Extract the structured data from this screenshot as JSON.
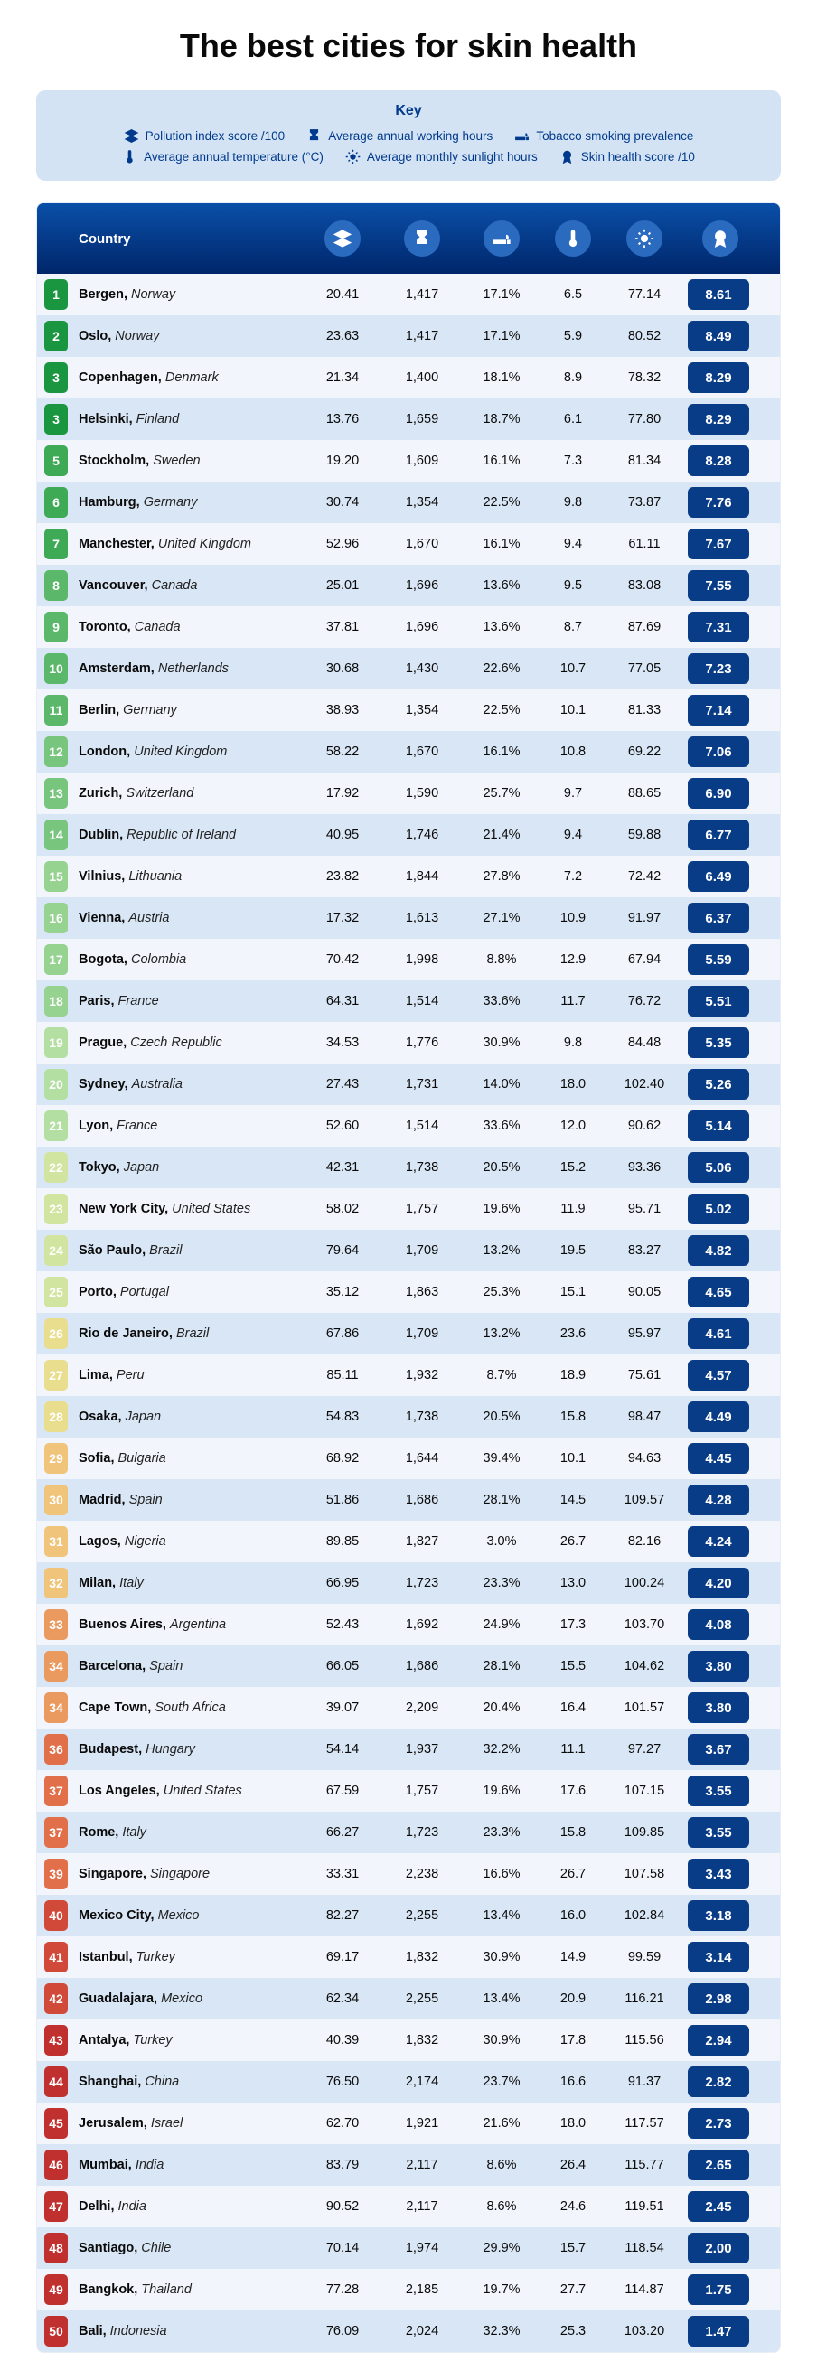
{
  "title": "The best cities for skin health",
  "key_title": "Key",
  "key_items": [
    "Pollution index score /100",
    "Average annual working hours",
    "Tobacco smoking prevalence",
    "Average annual temperature (°C)",
    "Average monthly sunlight hours",
    "Skin health score /10"
  ],
  "header_country": "Country",
  "colors": {
    "header_grad_top": "#0a4fa8",
    "header_grad_bottom": "#00266a",
    "icon_circle": "#2a6bc0",
    "key_bg": "#d4e3f4",
    "key_text": "#003a8c",
    "score_bg": "#083c86",
    "row_even": "#f2f6fc",
    "row_odd": "#d9e6f5",
    "rank_palette": [
      "#1a9641",
      "#3eaa56",
      "#5bb86a",
      "#78c57d",
      "#96d290",
      "#b4dfa3",
      "#d2e5a0",
      "#e8de8e",
      "#f0c47a",
      "#ea9a5f",
      "#e06f4a",
      "#d14939",
      "#c0302e",
      "#c0302e",
      "#c0302e"
    ]
  },
  "rows": [
    {
      "rank": 1,
      "city": "Bergen",
      "country": "Norway",
      "pollution": "20.41",
      "hours": "1,417",
      "smoke": "17.1%",
      "temp": "6.5",
      "sun": "77.14",
      "score": "8.61"
    },
    {
      "rank": 2,
      "city": "Oslo",
      "country": "Norway",
      "pollution": "23.63",
      "hours": "1,417",
      "smoke": "17.1%",
      "temp": "5.9",
      "sun": "80.52",
      "score": "8.49"
    },
    {
      "rank": 3,
      "city": "Copenhagen",
      "country": "Denmark",
      "pollution": "21.34",
      "hours": "1,400",
      "smoke": "18.1%",
      "temp": "8.9",
      "sun": "78.32",
      "score": "8.29"
    },
    {
      "rank": 3,
      "city": "Helsinki",
      "country": "Finland",
      "pollution": "13.76",
      "hours": "1,659",
      "smoke": "18.7%",
      "temp": "6.1",
      "sun": "77.80",
      "score": "8.29"
    },
    {
      "rank": 5,
      "city": "Stockholm",
      "country": "Sweden",
      "pollution": "19.20",
      "hours": "1,609",
      "smoke": "16.1%",
      "temp": "7.3",
      "sun": "81.34",
      "score": "8.28"
    },
    {
      "rank": 6,
      "city": "Hamburg",
      "country": "Germany",
      "pollution": "30.74",
      "hours": "1,354",
      "smoke": "22.5%",
      "temp": "9.8",
      "sun": "73.87",
      "score": "7.76"
    },
    {
      "rank": 7,
      "city": "Manchester",
      "country": "United Kingdom",
      "pollution": "52.96",
      "hours": "1,670",
      "smoke": "16.1%",
      "temp": "9.4",
      "sun": "61.11",
      "score": "7.67"
    },
    {
      "rank": 8,
      "city": "Vancouver",
      "country": "Canada",
      "pollution": "25.01",
      "hours": "1,696",
      "smoke": "13.6%",
      "temp": "9.5",
      "sun": "83.08",
      "score": "7.55"
    },
    {
      "rank": 9,
      "city": "Toronto",
      "country": "Canada",
      "pollution": "37.81",
      "hours": "1,696",
      "smoke": "13.6%",
      "temp": "8.7",
      "sun": "87.69",
      "score": "7.31"
    },
    {
      "rank": 10,
      "city": "Amsterdam",
      "country": "Netherlands",
      "pollution": "30.68",
      "hours": "1,430",
      "smoke": "22.6%",
      "temp": "10.7",
      "sun": "77.05",
      "score": "7.23"
    },
    {
      "rank": 11,
      "city": "Berlin",
      "country": "Germany",
      "pollution": "38.93",
      "hours": "1,354",
      "smoke": "22.5%",
      "temp": "10.1",
      "sun": "81.33",
      "score": "7.14"
    },
    {
      "rank": 12,
      "city": "London",
      "country": "United Kingdom",
      "pollution": "58.22",
      "hours": "1,670",
      "smoke": "16.1%",
      "temp": "10.8",
      "sun": "69.22",
      "score": "7.06"
    },
    {
      "rank": 13,
      "city": "Zurich",
      "country": "Switzerland",
      "pollution": "17.92",
      "hours": "1,590",
      "smoke": "25.7%",
      "temp": "9.7",
      "sun": "88.65",
      "score": "6.90"
    },
    {
      "rank": 14,
      "city": "Dublin",
      "country": "Republic of Ireland",
      "pollution": "40.95",
      "hours": "1,746",
      "smoke": "21.4%",
      "temp": "9.4",
      "sun": "59.88",
      "score": "6.77"
    },
    {
      "rank": 15,
      "city": "Vilnius",
      "country": "Lithuania",
      "pollution": "23.82",
      "hours": "1,844",
      "smoke": "27.8%",
      "temp": "7.2",
      "sun": "72.42",
      "score": "6.49"
    },
    {
      "rank": 16,
      "city": "Vienna",
      "country": "Austria",
      "pollution": "17.32",
      "hours": "1,613",
      "smoke": "27.1%",
      "temp": "10.9",
      "sun": "91.97",
      "score": "6.37"
    },
    {
      "rank": 17,
      "city": "Bogota",
      "country": "Colombia",
      "pollution": "70.42",
      "hours": "1,998",
      "smoke": "8.8%",
      "temp": "12.9",
      "sun": "67.94",
      "score": "5.59"
    },
    {
      "rank": 18,
      "city": "Paris",
      "country": "France",
      "pollution": "64.31",
      "hours": "1,514",
      "smoke": "33.6%",
      "temp": "11.7",
      "sun": "76.72",
      "score": "5.51"
    },
    {
      "rank": 19,
      "city": "Prague",
      "country": "Czech Republic",
      "pollution": "34.53",
      "hours": "1,776",
      "smoke": "30.9%",
      "temp": "9.8",
      "sun": "84.48",
      "score": "5.35"
    },
    {
      "rank": 20,
      "city": "Sydney",
      "country": "Australia",
      "pollution": "27.43",
      "hours": "1,731",
      "smoke": "14.0%",
      "temp": "18.0",
      "sun": "102.40",
      "score": "5.26"
    },
    {
      "rank": 21,
      "city": "Lyon",
      "country": "France",
      "pollution": "52.60",
      "hours": "1,514",
      "smoke": "33.6%",
      "temp": "12.0",
      "sun": "90.62",
      "score": "5.14"
    },
    {
      "rank": 22,
      "city": "Tokyo",
      "country": "Japan",
      "pollution": "42.31",
      "hours": "1,738",
      "smoke": "20.5%",
      "temp": "15.2",
      "sun": "93.36",
      "score": "5.06"
    },
    {
      "rank": 23,
      "city": "New York City",
      "country": "United States",
      "pollution": "58.02",
      "hours": "1,757",
      "smoke": "19.6%",
      "temp": "11.9",
      "sun": "95.71",
      "score": "5.02"
    },
    {
      "rank": 24,
      "city": "São Paulo",
      "country": "Brazil",
      "pollution": "79.64",
      "hours": "1,709",
      "smoke": "13.2%",
      "temp": "19.5",
      "sun": "83.27",
      "score": "4.82"
    },
    {
      "rank": 25,
      "city": "Porto",
      "country": "Portugal",
      "pollution": "35.12",
      "hours": "1,863",
      "smoke": "25.3%",
      "temp": "15.1",
      "sun": "90.05",
      "score": "4.65"
    },
    {
      "rank": 26,
      "city": "Rio de Janeiro",
      "country": "Brazil",
      "pollution": "67.86",
      "hours": "1,709",
      "smoke": "13.2%",
      "temp": "23.6",
      "sun": "95.97",
      "score": "4.61"
    },
    {
      "rank": 27,
      "city": "Lima",
      "country": "Peru",
      "pollution": "85.11",
      "hours": "1,932",
      "smoke": "8.7%",
      "temp": "18.9",
      "sun": "75.61",
      "score": "4.57"
    },
    {
      "rank": 28,
      "city": "Osaka",
      "country": "Japan",
      "pollution": "54.83",
      "hours": "1,738",
      "smoke": "20.5%",
      "temp": "15.8",
      "sun": "98.47",
      "score": "4.49"
    },
    {
      "rank": 29,
      "city": "Sofia",
      "country": "Bulgaria",
      "pollution": "68.92",
      "hours": "1,644",
      "smoke": "39.4%",
      "temp": "10.1",
      "sun": "94.63",
      "score": "4.45"
    },
    {
      "rank": 30,
      "city": "Madrid",
      "country": "Spain",
      "pollution": "51.86",
      "hours": "1,686",
      "smoke": "28.1%",
      "temp": "14.5",
      "sun": "109.57",
      "score": "4.28"
    },
    {
      "rank": 31,
      "city": "Lagos",
      "country": "Nigeria",
      "pollution": "89.85",
      "hours": "1,827",
      "smoke": "3.0%",
      "temp": "26.7",
      "sun": "82.16",
      "score": "4.24"
    },
    {
      "rank": 32,
      "city": "Milan",
      "country": "Italy",
      "pollution": "66.95",
      "hours": "1,723",
      "smoke": "23.3%",
      "temp": "13.0",
      "sun": "100.24",
      "score": "4.20"
    },
    {
      "rank": 33,
      "city": "Buenos Aires",
      "country": "Argentina",
      "pollution": "52.43",
      "hours": "1,692",
      "smoke": "24.9%",
      "temp": "17.3",
      "sun": "103.70",
      "score": "4.08"
    },
    {
      "rank": 34,
      "city": "Barcelona",
      "country": "Spain",
      "pollution": "66.05",
      "hours": "1,686",
      "smoke": "28.1%",
      "temp": "15.5",
      "sun": "104.62",
      "score": "3.80"
    },
    {
      "rank": 34,
      "city": "Cape Town",
      "country": "South Africa",
      "pollution": "39.07",
      "hours": "2,209",
      "smoke": "20.4%",
      "temp": "16.4",
      "sun": "101.57",
      "score": "3.80"
    },
    {
      "rank": 36,
      "city": "Budapest",
      "country": "Hungary",
      "pollution": "54.14",
      "hours": "1,937",
      "smoke": "32.2%",
      "temp": "11.1",
      "sun": "97.27",
      "score": "3.67"
    },
    {
      "rank": 37,
      "city": "Los Angeles",
      "country": "United States",
      "pollution": "67.59",
      "hours": "1,757",
      "smoke": "19.6%",
      "temp": "17.6",
      "sun": "107.15",
      "score": "3.55"
    },
    {
      "rank": 37,
      "city": "Rome",
      "country": "Italy",
      "pollution": "66.27",
      "hours": "1,723",
      "smoke": "23.3%",
      "temp": "15.8",
      "sun": "109.85",
      "score": "3.55"
    },
    {
      "rank": 39,
      "city": "Singapore",
      "country": "Singapore",
      "pollution": "33.31",
      "hours": "2,238",
      "smoke": "16.6%",
      "temp": "26.7",
      "sun": "107.58",
      "score": "3.43"
    },
    {
      "rank": 40,
      "city": "Mexico City",
      "country": "Mexico",
      "pollution": "82.27",
      "hours": "2,255",
      "smoke": "13.4%",
      "temp": "16.0",
      "sun": "102.84",
      "score": "3.18"
    },
    {
      "rank": 41,
      "city": "Istanbul",
      "country": "Turkey",
      "pollution": "69.17",
      "hours": "1,832",
      "smoke": "30.9%",
      "temp": "14.9",
      "sun": "99.59",
      "score": "3.14"
    },
    {
      "rank": 42,
      "city": "Guadalajara",
      "country": "Mexico",
      "pollution": "62.34",
      "hours": "2,255",
      "smoke": "13.4%",
      "temp": "20.9",
      "sun": "116.21",
      "score": "2.98"
    },
    {
      "rank": 43,
      "city": "Antalya",
      "country": "Turkey",
      "pollution": "40.39",
      "hours": "1,832",
      "smoke": "30.9%",
      "temp": "17.8",
      "sun": "115.56",
      "score": "2.94"
    },
    {
      "rank": 44,
      "city": "Shanghai",
      "country": "China",
      "pollution": "76.50",
      "hours": "2,174",
      "smoke": "23.7%",
      "temp": "16.6",
      "sun": "91.37",
      "score": "2.82"
    },
    {
      "rank": 45,
      "city": "Jerusalem",
      "country": "Israel",
      "pollution": "62.70",
      "hours": "1,921",
      "smoke": "21.6%",
      "temp": "18.0",
      "sun": "117.57",
      "score": "2.73"
    },
    {
      "rank": 46,
      "city": "Mumbai",
      "country": "India",
      "pollution": "83.79",
      "hours": "2,117",
      "smoke": "8.6%",
      "temp": "26.4",
      "sun": "115.77",
      "score": "2.65"
    },
    {
      "rank": 47,
      "city": "Delhi",
      "country": "India",
      "pollution": "90.52",
      "hours": "2,117",
      "smoke": "8.6%",
      "temp": "24.6",
      "sun": "119.51",
      "score": "2.45"
    },
    {
      "rank": 48,
      "city": "Santiago",
      "country": "Chile",
      "pollution": "70.14",
      "hours": "1,974",
      "smoke": "29.9%",
      "temp": "15.7",
      "sun": "118.54",
      "score": "2.00"
    },
    {
      "rank": 49,
      "city": "Bangkok",
      "country": "Thailand",
      "pollution": "77.28",
      "hours": "2,185",
      "smoke": "19.7%",
      "temp": "27.7",
      "sun": "114.87",
      "score": "1.75"
    },
    {
      "rank": 50,
      "city": "Bali",
      "country": "Indonesia",
      "pollution": "76.09",
      "hours": "2,024",
      "smoke": "32.3%",
      "temp": "25.3",
      "sun": "103.20",
      "score": "1.47"
    }
  ]
}
